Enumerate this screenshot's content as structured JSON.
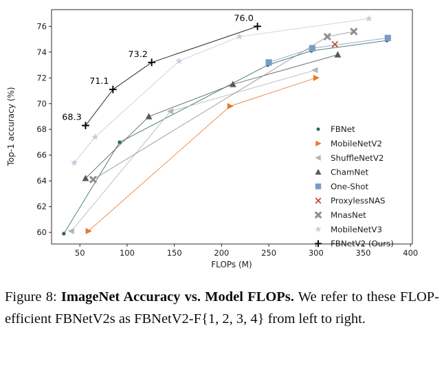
{
  "page": {
    "background": "#ffffff"
  },
  "chart_data": {
    "type": "line",
    "title": "",
    "xlabel": "FLOPs (M)",
    "ylabel": "Top-1 accuracy (%)",
    "x_ticks": [
      50,
      100,
      150,
      200,
      250,
      300,
      350,
      400
    ],
    "y_ticks": [
      60,
      62,
      64,
      66,
      68,
      70,
      72,
      74,
      76
    ],
    "xlim": [
      20,
      402
    ],
    "ylim": [
      59.1,
      77.3
    ],
    "grid": false,
    "legend_position": "lower-right",
    "series": [
      {
        "name": "FBNet",
        "marker": "dot",
        "color": "#2e6960",
        "points": [
          [
            33,
            59.9
          ],
          [
            92,
            67.0
          ],
          [
            249,
            73.0
          ],
          [
            295,
            74.1
          ],
          [
            375,
            74.9
          ]
        ]
      },
      {
        "name": "MobileNetV2",
        "marker": "triangle-right",
        "color": "#e87a2f",
        "points": [
          [
            59,
            60.1
          ],
          [
            209,
            69.8
          ],
          [
            300,
            72.0
          ]
        ]
      },
      {
        "name": "ShuffleNetV2",
        "marker": "triangle-left",
        "color": "#b5b5b5",
        "points": [
          [
            41,
            60.1
          ],
          [
            146,
            69.4
          ],
          [
            299,
            72.6
          ]
        ]
      },
      {
        "name": "ChamNet",
        "marker": "triangle-up",
        "color": "#595959",
        "points": [
          [
            56,
            64.2
          ],
          [
            123,
            69.0
          ],
          [
            212,
            71.5
          ],
          [
            323,
            73.8
          ]
        ]
      },
      {
        "name": "One-Shot",
        "marker": "square",
        "color": "#7a9cc8",
        "points": [
          [
            250,
            73.2
          ],
          [
            296,
            74.3
          ],
          [
            376,
            75.1
          ]
        ]
      },
      {
        "name": "ProxylessNAS",
        "marker": "x",
        "color": "#c04a2c",
        "points": [
          [
            320,
            74.6
          ]
        ]
      },
      {
        "name": "MnasNet",
        "marker": "x-bold",
        "color": "#8f8f8f",
        "points": [
          [
            64,
            64.1
          ],
          [
            312,
            75.2
          ],
          [
            340,
            75.6
          ]
        ]
      },
      {
        "name": "MobileNetV3",
        "marker": "star",
        "color": "#c2cede",
        "points": [
          [
            44,
            65.4
          ],
          [
            66,
            67.4
          ],
          [
            155,
            73.3
          ],
          [
            219,
            75.2
          ],
          [
            356,
            76.6
          ]
        ]
      },
      {
        "name": "FBNetV2 (Ours)",
        "marker": "plus",
        "color": "#000000",
        "points": [
          [
            56,
            68.3
          ],
          [
            85,
            71.1
          ],
          [
            126,
            73.2
          ],
          [
            238,
            76.0
          ]
        ],
        "point_labels": [
          "68.3",
          "71.1",
          "73.2",
          "76.0"
        ]
      }
    ]
  },
  "caption": {
    "prefix": "Figure 8:",
    "bold": "ImageNet Accuracy vs. Model FLOPs.",
    "rest": "We refer to these FLOP-efficient FBNetV2s as FBNetV2-F{1, 2, 3, 4} from left to right."
  }
}
